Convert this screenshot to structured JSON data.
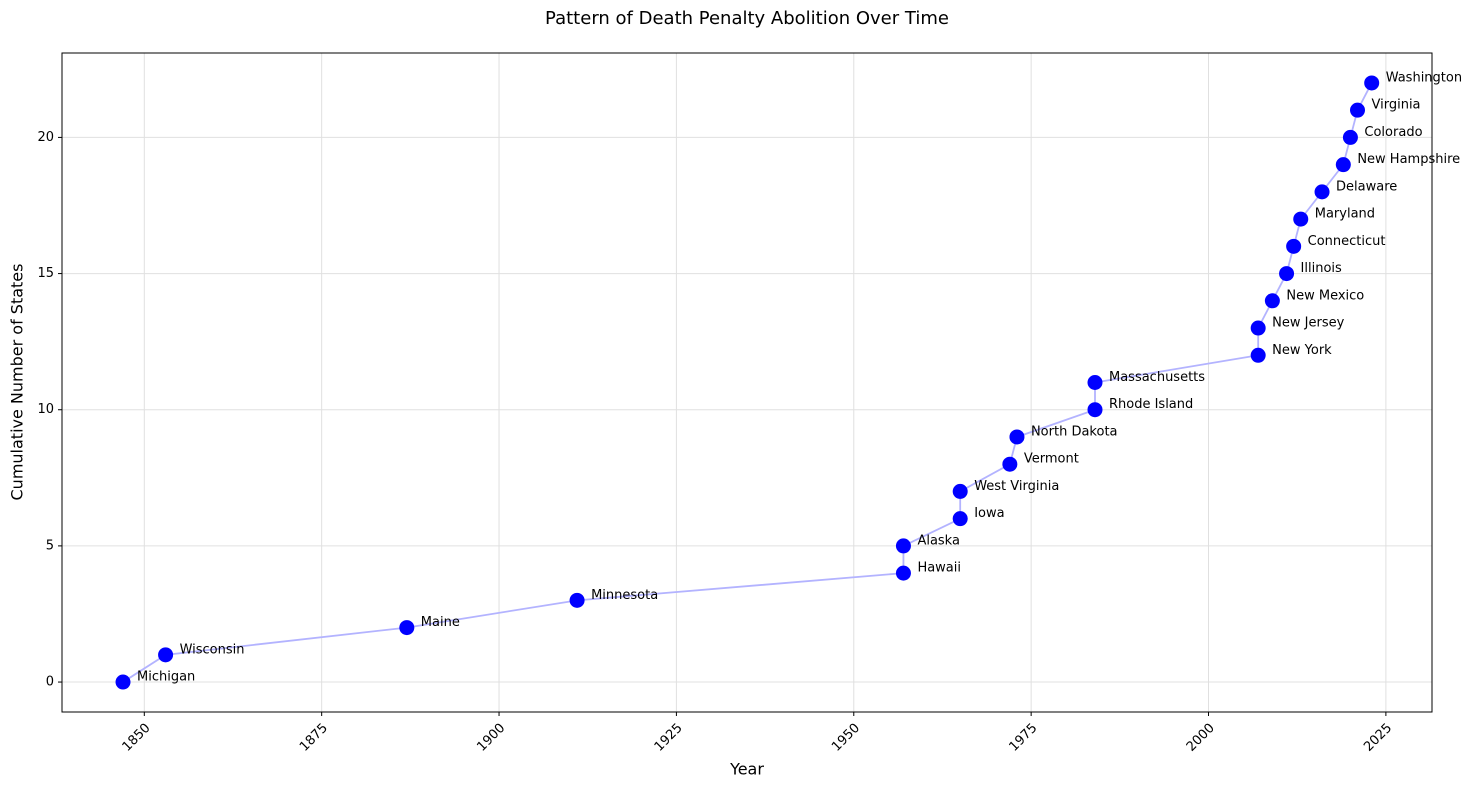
{
  "chart_data": {
    "type": "line",
    "title": "Pattern of Death Penalty Abolition Over Time",
    "x_label": "Year",
    "y_label": "Cumulative Number of States",
    "x": [
      1847,
      1853,
      1887,
      1911,
      1957,
      1957,
      1965,
      1965,
      1972,
      1973,
      1984,
      1984,
      2007,
      2007,
      2009,
      2011,
      2012,
      2013,
      2016,
      2019,
      2020,
      2021,
      2023
    ],
    "values": [
      0,
      1,
      2,
      3,
      4,
      5,
      6,
      7,
      8,
      9,
      10,
      11,
      12,
      13,
      14,
      15,
      16,
      17,
      18,
      19,
      20,
      21,
      22
    ],
    "annotations": [
      "Michigan",
      "Wisconsin",
      "Maine",
      "Minnesota",
      "Hawaii",
      "Alaska",
      "Iowa",
      "West Virginia",
      "Vermont",
      "North Dakota",
      "Rhode Island",
      "Massachusetts",
      "New York",
      "New Jersey",
      "New Mexico",
      "Illinois",
      "Connecticut",
      "Maryland",
      "Delaware",
      "New Hampshire",
      "Colorado",
      "Virginia",
      "Washington"
    ],
    "color": "#0000ff",
    "line_color": "#b3b3ff",
    "xlim": [
      1838.4,
      2031.5
    ],
    "ylim": [
      -1.1,
      23.1
    ],
    "xticks": [
      1850,
      1875,
      1900,
      1925,
      1950,
      1975,
      2000,
      2025
    ],
    "yticks": [
      0,
      5,
      10,
      15,
      20
    ],
    "grid": true
  }
}
